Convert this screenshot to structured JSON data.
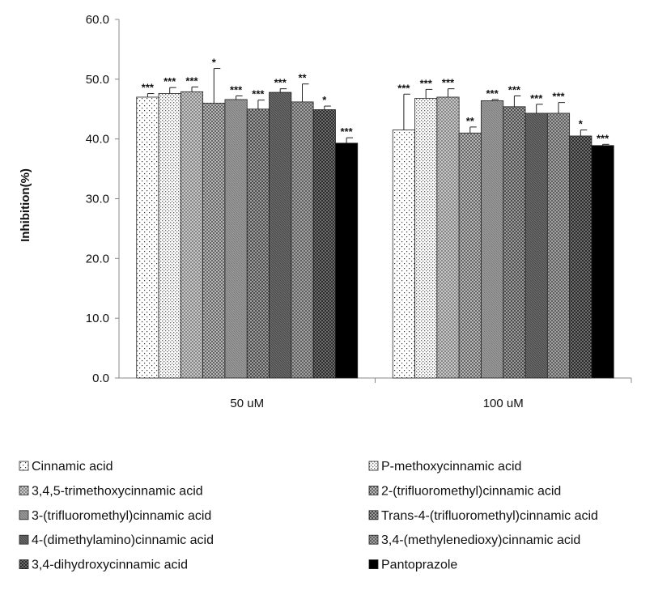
{
  "chart_data": {
    "type": "bar",
    "categories": [
      "50 uM",
      "100 uM"
    ],
    "ylabel": "Inhibition(%)",
    "xlabel": "",
    "title": "",
    "ylim": [
      0,
      60
    ],
    "yticks": [
      "0.0",
      "10.0",
      "20.0",
      "30.0",
      "40.0",
      "50.0",
      "60.0"
    ],
    "grid": false,
    "legend_position": "bottom",
    "series": [
      {
        "name": "Cinnamic acid",
        "pattern": "dots-sparse",
        "values": [
          47.0,
          41.5
        ],
        "errors": [
          0.6,
          6.0
        ],
        "significance": [
          "***",
          "***"
        ]
      },
      {
        "name": "P-methoxycinnamic acid",
        "pattern": "dots-dense",
        "values": [
          47.6,
          46.8
        ],
        "errors": [
          1.0,
          1.5
        ],
        "significance": [
          "***",
          "***"
        ]
      },
      {
        "name": "3,4,5-trimethoxycinnamic acid",
        "pattern": "crosshatch-light",
        "values": [
          47.9,
          47.0
        ],
        "errors": [
          0.8,
          1.4
        ],
        "significance": [
          "***",
          "***"
        ]
      },
      {
        "name": "2-(trifluoromethyl)cinnamic acid",
        "pattern": "crosshatch-light2",
        "values": [
          46.0,
          41.0
        ],
        "errors": [
          5.8,
          1.0
        ],
        "significance": [
          "*",
          "**"
        ]
      },
      {
        "name": "3-(trifluoromethyl)cinnamic acid",
        "pattern": "grey-hatch",
        "values": [
          46.6,
          46.4
        ],
        "errors": [
          0.6,
          0.2
        ],
        "significance": [
          "***",
          "***"
        ]
      },
      {
        "name": "Trans-4-(trifluoromethyl)cinnamic acid",
        "pattern": "crosshatch-medium",
        "values": [
          45.0,
          45.4
        ],
        "errors": [
          1.5,
          1.8
        ],
        "significance": [
          "***",
          "***"
        ]
      },
      {
        "name": "4-(dimethylamino)cinnamic acid",
        "pattern": "dark-grey-hatch",
        "values": [
          47.8,
          44.3
        ],
        "errors": [
          0.6,
          1.5
        ],
        "significance": [
          "***",
          "***"
        ]
      },
      {
        "name": "3,4-(methylenedioxy)cinnamic acid",
        "pattern": "crosshatch-dark",
        "values": [
          46.2,
          44.3
        ],
        "errors": [
          3.0,
          1.8
        ],
        "significance": [
          "**",
          "***"
        ]
      },
      {
        "name": "3,4-dihydroxycinnamic acid",
        "pattern": "crosshatch-darkest",
        "values": [
          44.9,
          40.5
        ],
        "errors": [
          0.6,
          1.0
        ],
        "significance": [
          "*",
          "*"
        ]
      },
      {
        "name": "Pantoprazole",
        "pattern": "solid-black",
        "values": [
          39.3,
          38.9
        ],
        "errors": [
          0.9,
          0.2
        ],
        "significance": [
          "***",
          "***"
        ]
      }
    ]
  }
}
